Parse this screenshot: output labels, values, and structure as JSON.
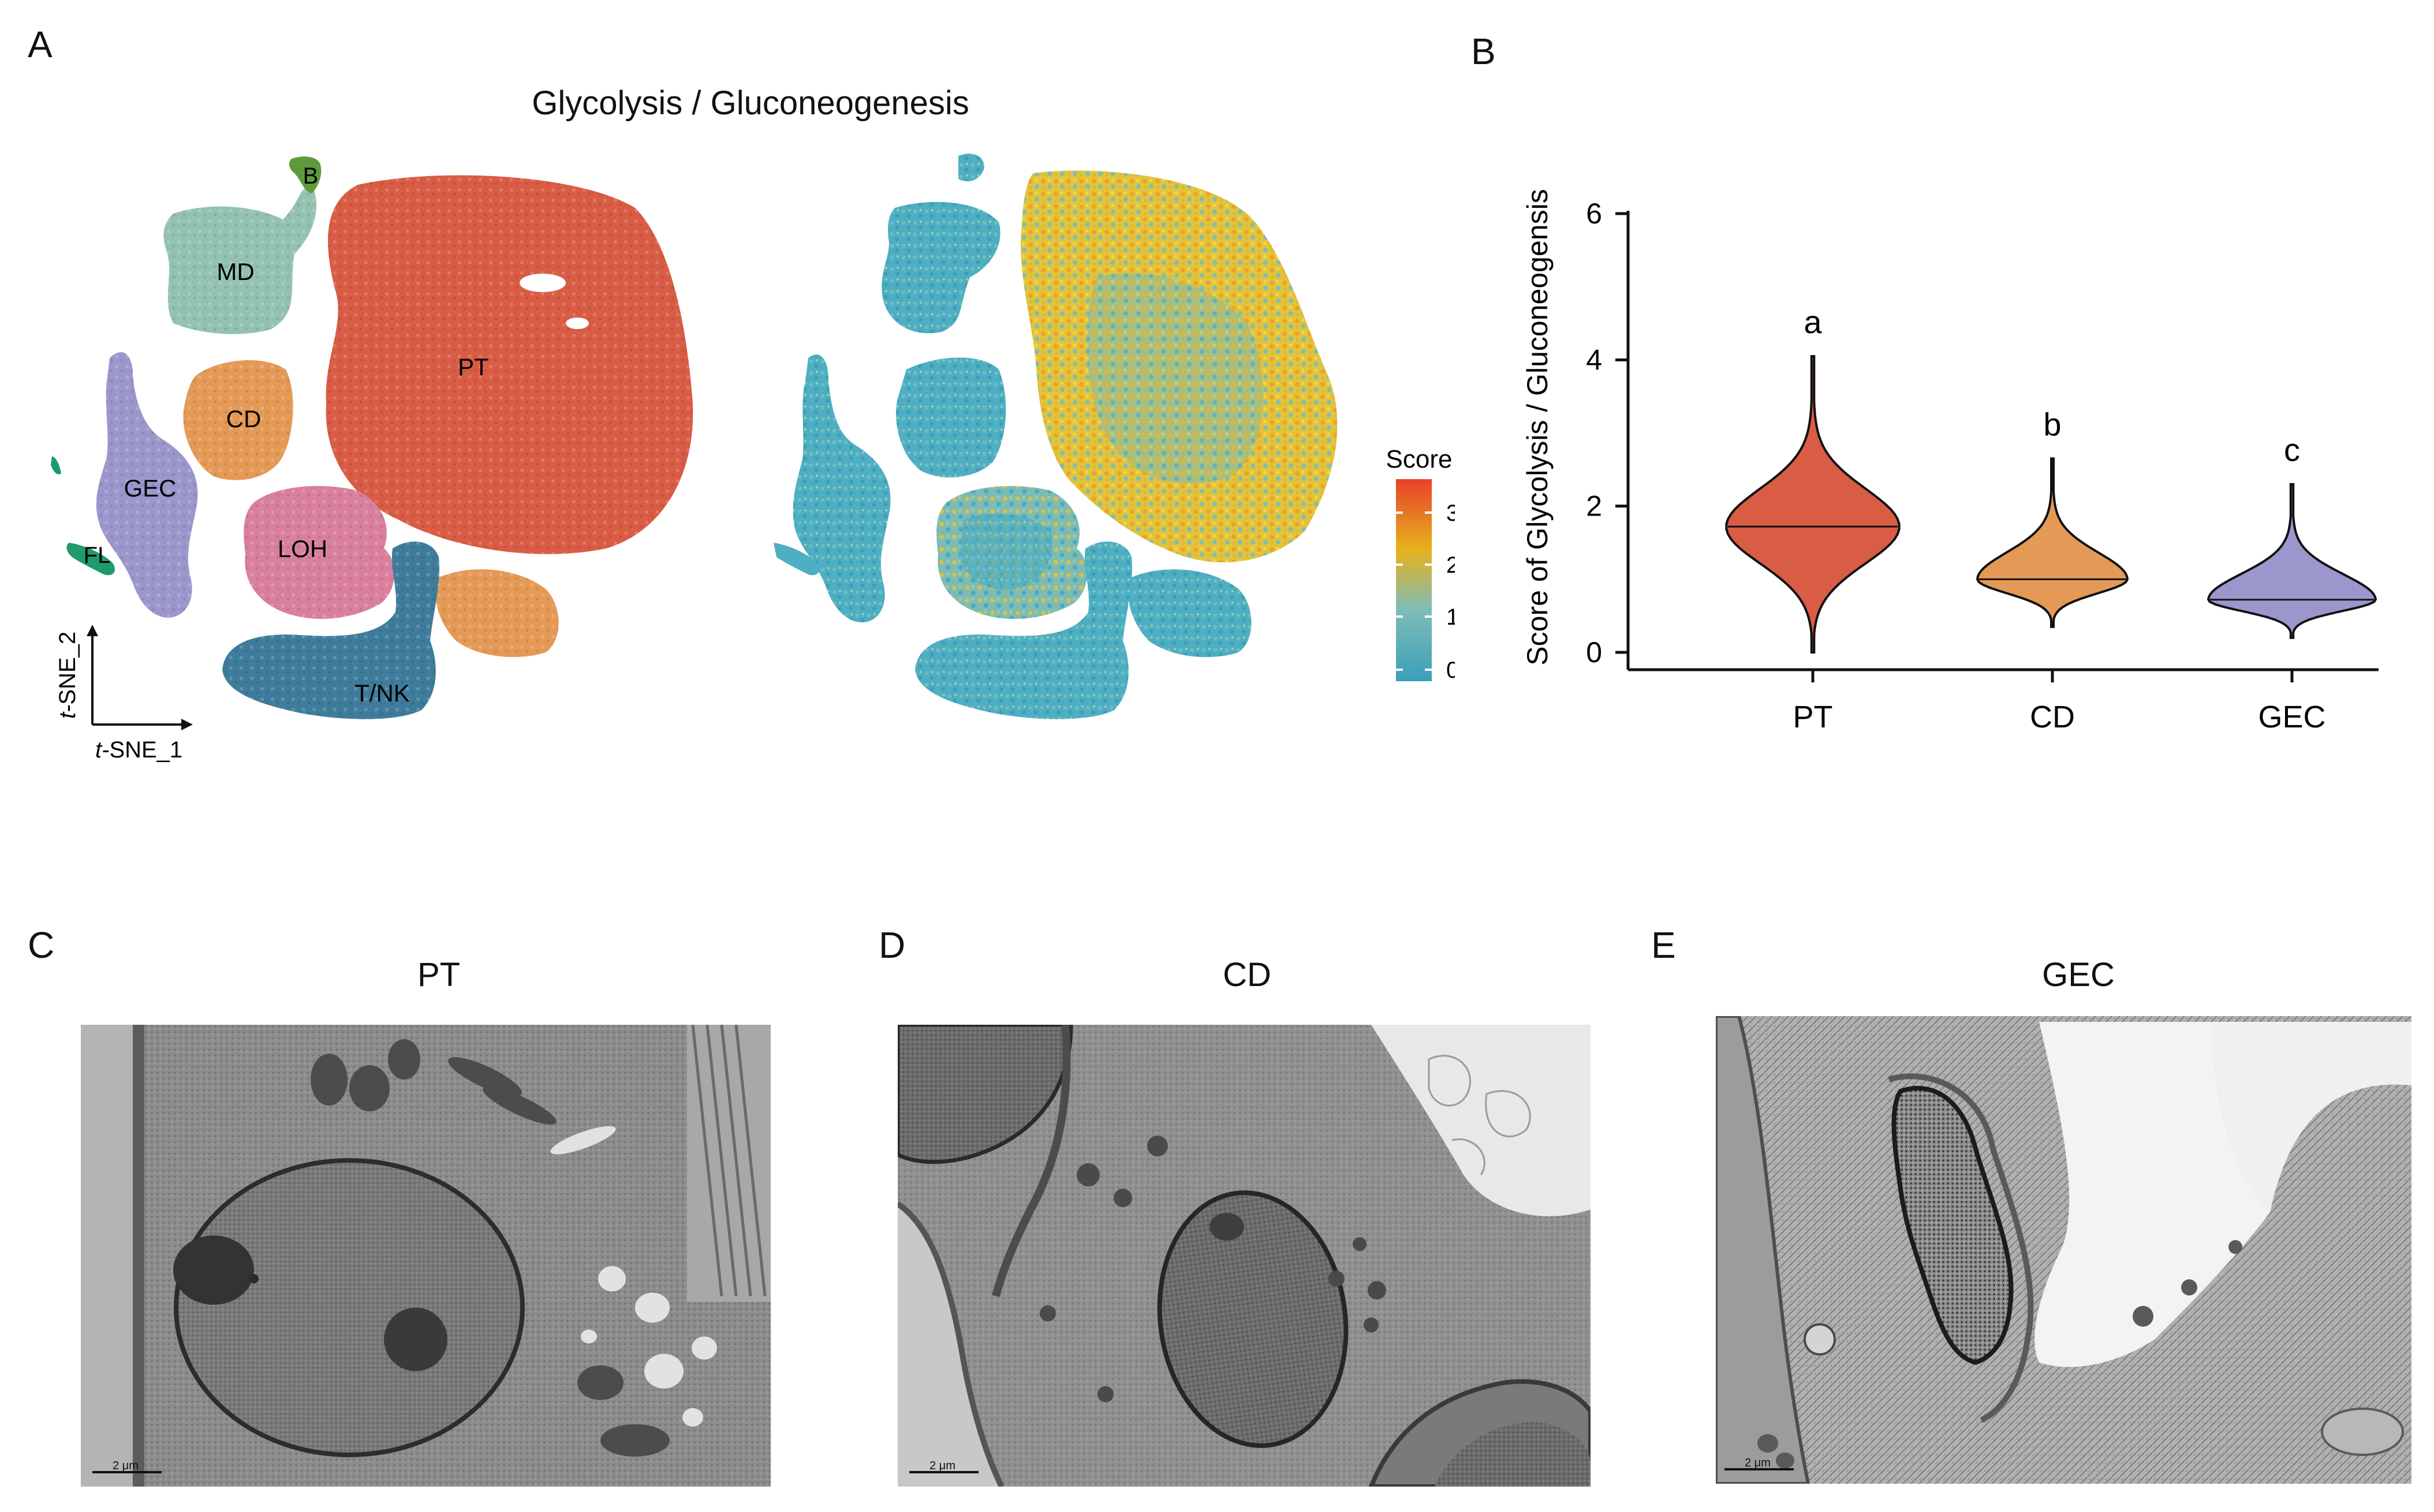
{
  "panels": {
    "A": {
      "letter": "A",
      "title": "Glycolysis / Gluconeogenesis",
      "axis_x": "SNE_1",
      "axis_y": "SNE_2",
      "axis_prefix": "t-",
      "clusters": [
        {
          "label": "PT",
          "color": "#d95c45"
        },
        {
          "label": "MD",
          "color": "#93c3b0"
        },
        {
          "label": "B",
          "color": "#5e9a3c"
        },
        {
          "label": "CD",
          "color": "#e49a56"
        },
        {
          "label": "GEC",
          "color": "#9b97cc"
        },
        {
          "label": "FL",
          "color": "#1f9a6b"
        },
        {
          "label": "LOH",
          "color": "#d9809f"
        },
        {
          "label": "T/NK",
          "color": "#3f7c9c"
        }
      ],
      "colorbar": {
        "title": "Score",
        "ticks": [
          "3",
          "2",
          "1",
          "0"
        ],
        "colors": [
          "#e8412a",
          "#e6b21c",
          "#4db0c4",
          "#3a9fb8"
        ]
      }
    },
    "B": {
      "letter": "B",
      "chart_data": {
        "type": "violin",
        "ylabel": "Score of Glycolysis / Gluconeogensis",
        "ylim": [
          0,
          6
        ],
        "yticks": [
          0,
          2,
          4,
          6
        ],
        "categories": [
          "PT",
          "CD",
          "GEC"
        ],
        "series": [
          {
            "category": "PT",
            "min": 0.0,
            "max": 4.05,
            "median": 1.72,
            "letter": "a",
            "color": "#d95c45"
          },
          {
            "category": "CD",
            "min": 0.35,
            "max": 2.65,
            "median": 1.0,
            "letter": "b",
            "color": "#e49a56"
          },
          {
            "category": "GEC",
            "min": 0.2,
            "max": 2.3,
            "median": 0.72,
            "letter": "c",
            "color": "#9b97cc"
          }
        ]
      }
    },
    "C": {
      "letter": "C",
      "title": "PT",
      "scale": "2 μm"
    },
    "D": {
      "letter": "D",
      "title": "CD",
      "scale": "2 μm"
    },
    "E": {
      "letter": "E",
      "title": "GEC",
      "scale": "2 μm"
    }
  }
}
